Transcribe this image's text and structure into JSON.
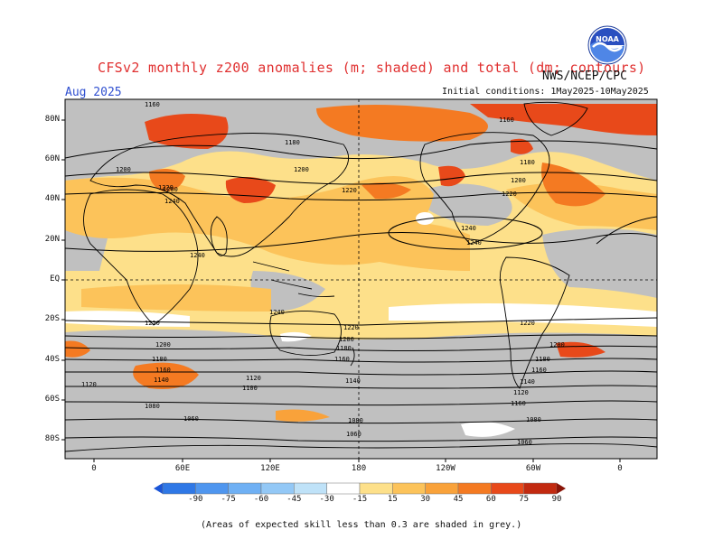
{
  "header": {
    "title": "CFSv2 monthly z200 anomalies (m; shaded) and total (dm; contours)",
    "month": "Aug 2025",
    "agency": "NWS/NCEP/CPC",
    "initial_conditions": "Initial conditions: 1May2025-10May2025",
    "logo_text": "NOAA"
  },
  "axes": {
    "lat_labels": [
      "80N",
      "60N",
      "40N",
      "20N",
      "EQ",
      "20S",
      "40S",
      "60S",
      "80S"
    ],
    "lon_labels": [
      "0",
      "60E",
      "120E",
      "180",
      "120W",
      "60W",
      "0"
    ]
  },
  "contour_labels": [
    "1160",
    "1180",
    "1200",
    "1220",
    "1240",
    "1240",
    "1240",
    "1240",
    "1220",
    "1220",
    "1200",
    "1180",
    "1160",
    "1140",
    "1120",
    "1100",
    "1080",
    "1060",
    "1160",
    "1180",
    "1200",
    "1180",
    "1160",
    "1140",
    "1120",
    "1100",
    "1080",
    "1060",
    "1200",
    "1220",
    "1240"
  ],
  "colorbar": {
    "labels": [
      "-90",
      "-75",
      "-60",
      "-45",
      "-30",
      "-15",
      "15",
      "30",
      "45",
      "60",
      "75",
      "90"
    ],
    "colors": [
      "#1a55d8",
      "#2f78e6",
      "#4f96ef",
      "#6fb0f4",
      "#93c8f6",
      "#bfe2f8",
      "#ffffff",
      "#fde08a",
      "#fcc35a",
      "#f9a23a",
      "#f47a22",
      "#e8491a",
      "#c22a10",
      "#8a1508"
    ]
  },
  "colors": {
    "grey_low_skill": "#c0c0c0",
    "title_red": "#e03030",
    "month_blue": "#3050d0"
  },
  "footnote": "(Areas of expected skill less than 0.3 are shaded in grey.)"
}
